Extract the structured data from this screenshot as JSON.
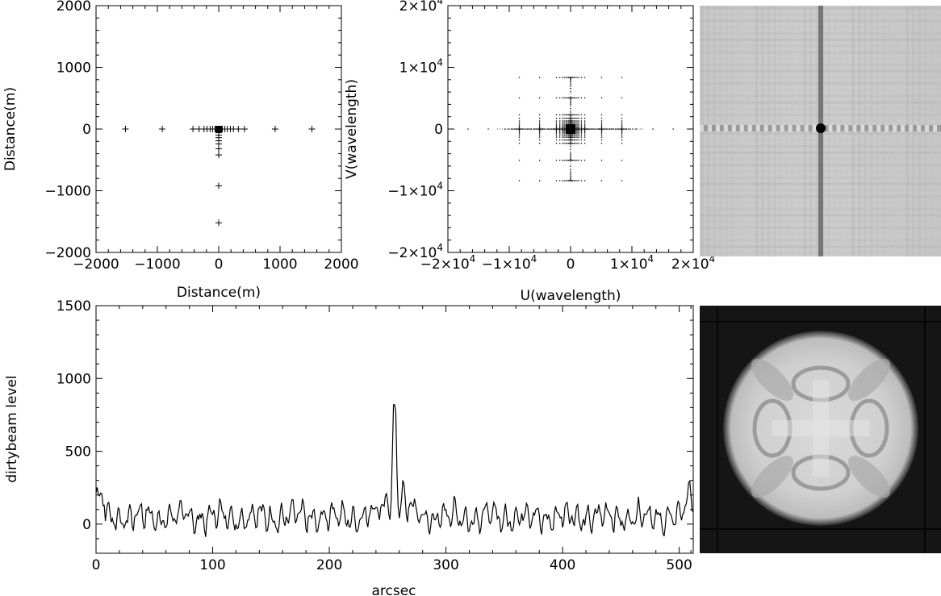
{
  "chart_data": [
    {
      "id": "antenna",
      "type": "scatter",
      "xlabel": "Distance(m)",
      "ylabel": "Distance(m)",
      "xlim": [
        -2000,
        2000
      ],
      "ylim": [
        -2000,
        2000
      ],
      "xticks": [
        -2000,
        -1000,
        0,
        1000,
        2000
      ],
      "yticks": [
        -2000,
        -1000,
        0,
        1000,
        2000
      ],
      "xtick_labels": [
        "−2000",
        "−1000",
        "0",
        "1000",
        "2000"
      ],
      "ytick_labels": [
        "−2000",
        "−1000",
        "0",
        "1000",
        "2000"
      ],
      "marker": "plus",
      "points": [
        [
          -1520,
          0
        ],
        [
          -920,
          0
        ],
        [
          -420,
          0
        ],
        [
          -320,
          0
        ],
        [
          -240,
          0
        ],
        [
          -190,
          0
        ],
        [
          -140,
          0
        ],
        [
          -100,
          0
        ],
        [
          -60,
          0
        ],
        [
          -30,
          0
        ],
        [
          30,
          0
        ],
        [
          60,
          0
        ],
        [
          100,
          0
        ],
        [
          140,
          0
        ],
        [
          190,
          0
        ],
        [
          240,
          0
        ],
        [
          320,
          0
        ],
        [
          420,
          0
        ],
        [
          920,
          0
        ],
        [
          1520,
          0
        ],
        [
          0,
          -30
        ],
        [
          0,
          -60
        ],
        [
          0,
          -100
        ],
        [
          0,
          -140
        ],
        [
          0,
          -190
        ],
        [
          0,
          -240
        ],
        [
          0,
          -320
        ],
        [
          0,
          -420
        ],
        [
          0,
          -920
        ],
        [
          0,
          -1520
        ]
      ]
    },
    {
      "id": "uv",
      "type": "scatter",
      "xlabel": "U(wavelength)",
      "ylabel": "V(wavelength)",
      "xlim": [
        -20000,
        20000
      ],
      "ylim": [
        -20000,
        20000
      ],
      "xticks": [
        -20000,
        -10000,
        0,
        10000,
        20000
      ],
      "yticks": [
        -20000,
        -10000,
        0,
        10000,
        20000
      ],
      "tick_label_mantissa": [
        "−2×10",
        "−1×10",
        "0",
        "1×10",
        "2×10"
      ],
      "tick_label_exponent": [
        "4",
        "4",
        "",
        "4",
        "4"
      ],
      "marker": "dot",
      "antenna_offsets_m": [
        -1520,
        -920,
        -420,
        -320,
        -240,
        -190,
        -140,
        -100,
        -60,
        -30,
        0,
        30,
        60,
        100,
        140,
        190,
        240,
        320,
        420,
        920,
        1520
      ],
      "note_scale": 5.5
    },
    {
      "id": "beam-cut",
      "type": "line",
      "xlabel": "arcsec",
      "ylabel": "dirtybeam level",
      "xlim": [
        0,
        512
      ],
      "ylim": [
        -200,
        1500
      ],
      "xticks": [
        0,
        100,
        200,
        300,
        400,
        500
      ],
      "yticks": [
        0,
        500,
        1000,
        1500
      ],
      "peak": {
        "x": 256,
        "y": 810
      },
      "baseline_sidelobe_amplitude": 110
    }
  ],
  "images": [
    {
      "id": "dirty-beam-map",
      "description_name": "dirty-beam-image"
    },
    {
      "id": "aperture-map",
      "description_name": "uv-coverage-image"
    }
  ],
  "colors": {
    "axis": "#000000",
    "background": "#ffffff"
  }
}
